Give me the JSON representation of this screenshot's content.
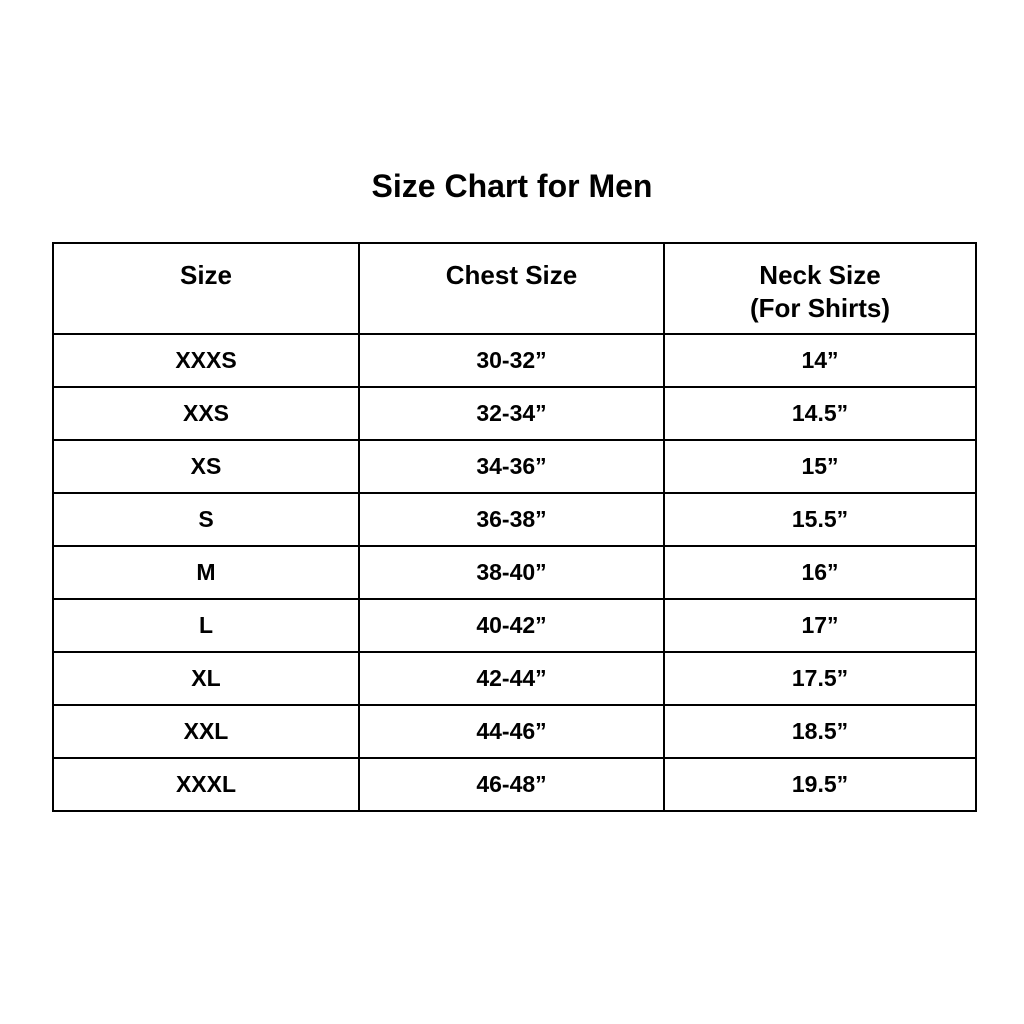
{
  "page": {
    "title": "Size Chart for Men",
    "background_color": "#ffffff",
    "text_color": "#000000",
    "border_color": "#000000"
  },
  "chart_data": {
    "type": "table",
    "title": "Size Chart for Men",
    "headers": [
      {
        "label": "Size"
      },
      {
        "label": "Chest Size"
      },
      {
        "label": "Neck Size",
        "sublabel": "(For Shirts)"
      }
    ],
    "columns": [
      "Size",
      "Chest Size",
      "Neck Size (For Shirts)"
    ],
    "rows": [
      [
        "XXXS",
        "30-32”",
        "14”"
      ],
      [
        "XXS",
        "32-34”",
        "14.5”"
      ],
      [
        "XS",
        "34-36”",
        "15”"
      ],
      [
        "S",
        "36-38”",
        "15.5”"
      ],
      [
        "M",
        "38-40”",
        "16”"
      ],
      [
        "L",
        "40-42”",
        "17”"
      ],
      [
        "XL",
        "42-44”",
        "17.5”"
      ],
      [
        "XXL",
        "44-46”",
        "18.5”"
      ],
      [
        "XXXL",
        "46-48”",
        "19.5”"
      ]
    ],
    "layout": {
      "grid": "full-borders",
      "text_alignment": "center",
      "font_weight": "bold"
    }
  }
}
